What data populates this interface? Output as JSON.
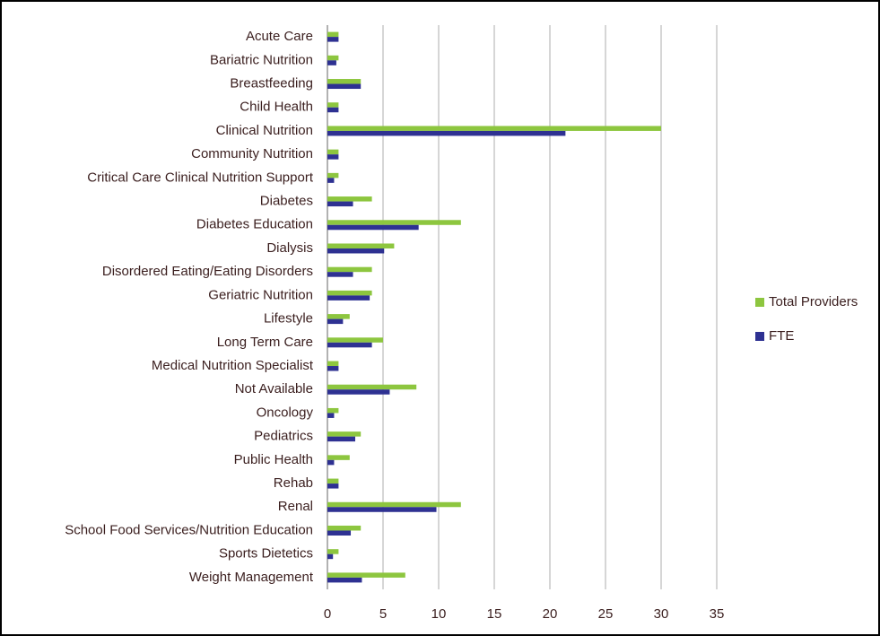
{
  "chart_data": {
    "type": "hbar",
    "categories": [
      "Acute Care",
      "Bariatric Nutrition",
      "Breastfeeding",
      "Child Health",
      "Clinical Nutrition",
      "Community Nutrition",
      "Critical Care Clinical Nutrition Support",
      "Diabetes",
      "Diabetes Education",
      "Dialysis",
      "Disordered Eating/Eating Disorders",
      "Geriatric Nutrition",
      "Lifestyle",
      "Long Term Care",
      "Medical Nutrition Specialist",
      "Not Available",
      "Oncology",
      "Pediatrics",
      "Public Health",
      "Rehab",
      "Renal",
      "School Food Services/Nutrition Education",
      "Sports Dietetics",
      "Weight Management"
    ],
    "series": [
      {
        "name": "Total Providers",
        "color": "#8dc63f",
        "values": [
          1,
          1,
          3,
          1,
          30,
          1,
          1,
          4,
          12,
          6,
          4,
          4,
          2,
          5,
          1,
          8,
          1,
          3,
          2,
          1,
          12,
          3,
          1,
          7
        ]
      },
      {
        "name": "FTE",
        "color": "#2e3192",
        "values": [
          1,
          0.8,
          3,
          1,
          21.4,
          1,
          0.6,
          2.3,
          8.2,
          5.1,
          2.3,
          3.8,
          1.4,
          4,
          1,
          5.6,
          0.6,
          2.5,
          0.6,
          1,
          9.8,
          2.1,
          0.5,
          3.1
        ]
      }
    ],
    "xlim": [
      0,
      35
    ],
    "xticks": [
      0,
      5,
      10,
      15,
      20,
      25,
      30,
      35
    ],
    "grid": true,
    "legend": "right"
  }
}
